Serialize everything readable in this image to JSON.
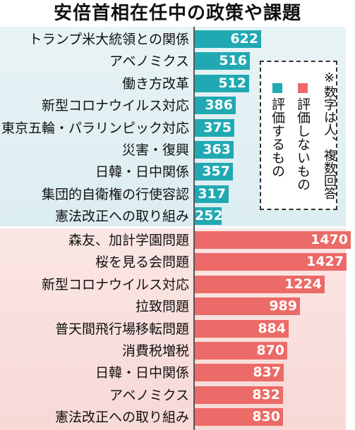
{
  "title": "安倍首相在任中の政策や課題",
  "note": "※数字は人、複数回答",
  "colors": {
    "positive": "#21a9b3",
    "negative": "#ec6a67"
  },
  "chart_data": {
    "type": "bar",
    "orientation": "horizontal",
    "title": "安倍首相在任中の政策や課題",
    "legend": [
      {
        "name": "評価するもの",
        "color": "#21a9b3"
      },
      {
        "name": "評価しないもの",
        "color": "#ec6a67"
      }
    ],
    "series": [
      {
        "name": "評価するもの",
        "categories": [
          "トランプ米大統領との関係",
          "アベノミクス",
          "働き方改革",
          "新型コロナウイルス対応",
          "東京五輪・パラリンピック対応",
          "災害・復興",
          "日韓・日中関係",
          "集団的自衛権の行使容認",
          "憲法改正への取り組み"
        ],
        "values": [
          622,
          516,
          512,
          386,
          375,
          363,
          357,
          317,
          252
        ]
      },
      {
        "name": "評価しないもの",
        "categories": [
          "森友、加計学園問題",
          "桜を見る会問題",
          "新型コロナウイルス対応",
          "拉致問題",
          "普天間飛行場移転問題",
          "消費税増税",
          "日韓・日中関係",
          "アベノミクス",
          "憲法改正への取り組み"
        ],
        "values": [
          1470,
          1427,
          1224,
          989,
          884,
          870,
          837,
          832,
          830
        ]
      }
    ],
    "xlim": [
      0,
      1470
    ],
    "grid": false,
    "legend_placement": "right"
  }
}
